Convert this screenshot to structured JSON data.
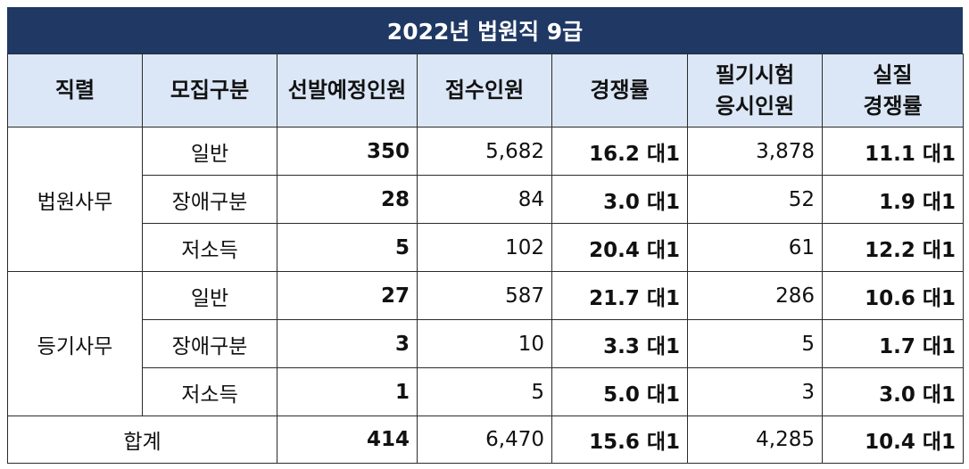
{
  "title": "2022년 법원직 9급",
  "headers": {
    "position": "직렬",
    "recruit_type": "모집구분",
    "planned": "선발예정인원",
    "applicants": "접수인원",
    "ratio": "경쟁률",
    "exam_takers_1": "필기시험",
    "exam_takers_2": "응시인원",
    "real_ratio_1": "실질",
    "real_ratio_2": "경쟁률"
  },
  "groups": [
    {
      "name": "법원사무",
      "rows": [
        {
          "type": "일반",
          "planned": "350",
          "applicants": "5,682",
          "ratio": "16.2 대1",
          "takers": "3,878",
          "real_ratio": "11.1 대1"
        },
        {
          "type": "장애구분",
          "planned": "28",
          "applicants": "84",
          "ratio": "3.0 대1",
          "takers": "52",
          "real_ratio": "1.9 대1"
        },
        {
          "type": "저소득",
          "planned": "5",
          "applicants": "102",
          "ratio": "20.4 대1",
          "takers": "61",
          "real_ratio": "12.2 대1"
        }
      ]
    },
    {
      "name": "등기사무",
      "rows": [
        {
          "type": "일반",
          "planned": "27",
          "applicants": "587",
          "ratio": "21.7 대1",
          "takers": "286",
          "real_ratio": "10.6 대1"
        },
        {
          "type": "장애구분",
          "planned": "3",
          "applicants": "10",
          "ratio": "3.3 대1",
          "takers": "5",
          "real_ratio": "1.7 대1"
        },
        {
          "type": "저소득",
          "planned": "1",
          "applicants": "5",
          "ratio": "5.0 대1",
          "takers": "3",
          "real_ratio": "3.0 대1"
        }
      ]
    }
  ],
  "total": {
    "label": "합계",
    "planned": "414",
    "applicants": "6,470",
    "ratio": "15.6 대1",
    "takers": "4,285",
    "real_ratio": "10.4 대1"
  },
  "colors": {
    "title_bg": "#1f3864",
    "header_bg": "#dbe7f6"
  }
}
